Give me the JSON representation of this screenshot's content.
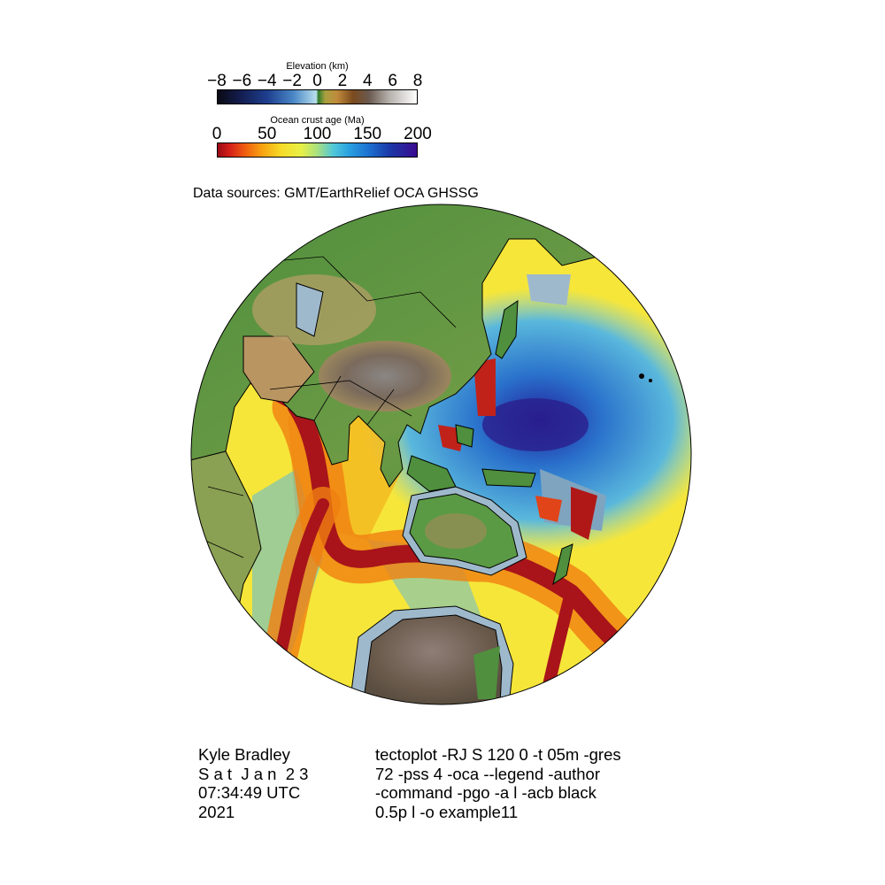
{
  "legend": {
    "elevation": {
      "title": "Elevation (km)",
      "ticks": [
        "−8",
        "−6",
        "−4",
        "−2",
        "0",
        "2",
        "4",
        "6",
        "8"
      ]
    },
    "ocean_age": {
      "title": "Ocean crust age (Ma)",
      "ticks": [
        "0",
        "50",
        "100",
        "150",
        "200"
      ]
    }
  },
  "sources": "Data sources: GMT/EarthRelief OCA GHSSG",
  "author": {
    "name": "Kyle Bradley",
    "date_line": "S a t  J a n  2 3",
    "time_line": "07:34:49 UTC",
    "year_line": "2021"
  },
  "command": {
    "line1": "tectoplot -RJ S 120 0 -t 05m -gres",
    "line2": "72 -pss 4 -oca --legend -author",
    "line3": "-command -pgo -a l -acb black",
    "line4": "0.5p l -o example11"
  },
  "map": {
    "projection": "S 120 0",
    "colors": {
      "ocean_young": "#b01818",
      "ocean_mid": "#f5e642",
      "ocean_old": "#2f3fb0",
      "land_low": "#4f8f3d",
      "land_mid": "#b99562",
      "land_high": "#7d6e66",
      "shelf": "#9fb9cc",
      "outline": "#000000"
    }
  }
}
